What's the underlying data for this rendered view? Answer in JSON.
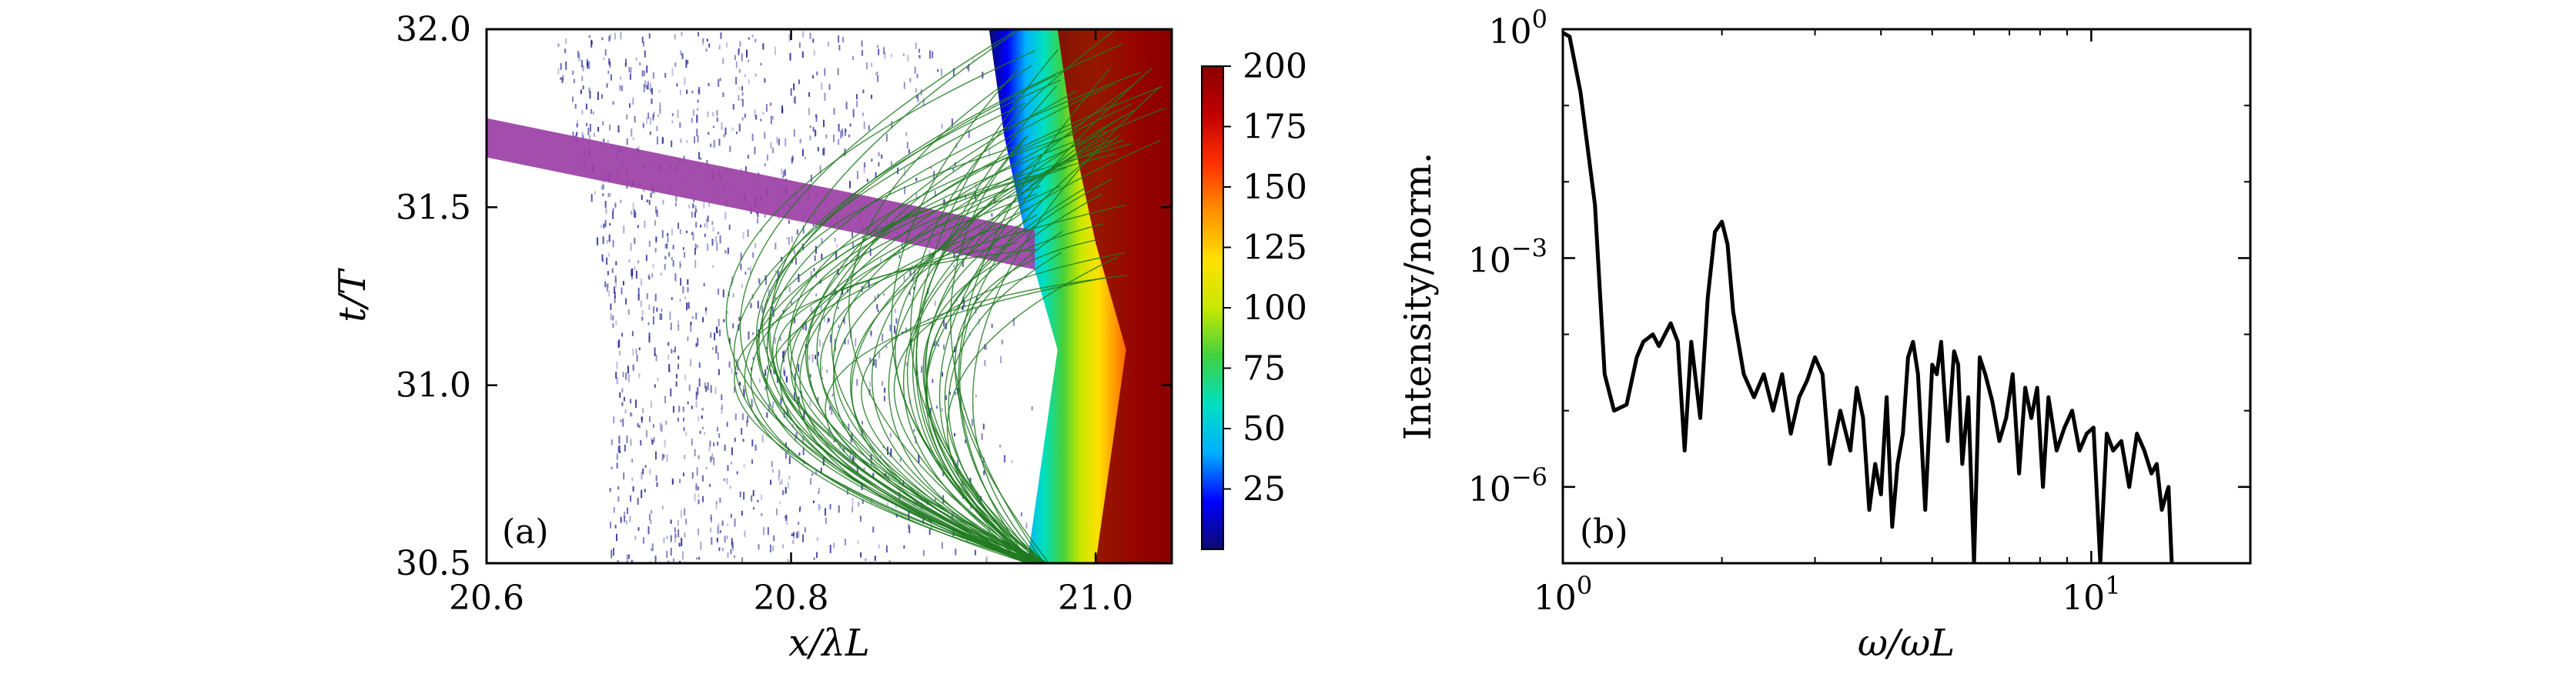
{
  "colors": {
    "background": "#ffffff",
    "axes": "#000000",
    "density_scatter": "#1a1a8c",
    "trajectories": "#1f7a1f",
    "emission_band": "#9b3fa6",
    "spectrum_line": "#000000",
    "colormap": [
      "#0b0b6e",
      "#0000ff",
      "#00b0ff",
      "#00e0c0",
      "#40d040",
      "#c8e800",
      "#ffe000",
      "#ff9000",
      "#ff3000",
      "#c00000",
      "#8b0000"
    ]
  },
  "chart_data": [
    {
      "type": "heatmap",
      "panel_label": "(a)",
      "title": "",
      "xlabel": "x/λL",
      "ylabel": "t/T",
      "xlim": [
        20.6,
        21.05
      ],
      "ylim": [
        30.5,
        32.0
      ],
      "xticks": [
        20.6,
        20.8,
        21.0
      ],
      "xtick_labels": [
        "20.6",
        "20.8",
        "21.0"
      ],
      "yticks": [
        30.5,
        31.0,
        31.5,
        32.0
      ],
      "ytick_labels": [
        "30.5",
        "31.0",
        "31.5",
        "32.0"
      ],
      "grid": false,
      "density_front": {
        "description_points_x_at_t": [
          {
            "t": 30.5,
            "x_start": 20.955
          },
          {
            "t": 30.8,
            "x_start": 20.965
          },
          {
            "t": 31.1,
            "x_start": 20.975
          },
          {
            "t": 31.4,
            "x_start": 20.955
          },
          {
            "t": 31.7,
            "x_start": 20.94
          },
          {
            "t": 32.0,
            "x_start": 20.93
          }
        ],
        "max_value_region_x": 21.0
      },
      "emission_band": {
        "x": [
          20.6,
          20.96
        ],
        "t_center": [
          31.695,
          31.38
        ],
        "t_halfwidth": 0.055
      },
      "colorbar": {
        "range": [
          0,
          200
        ],
        "ticks": [
          25,
          50,
          75,
          100,
          125,
          150,
          175,
          200
        ],
        "tick_labels": [
          "25",
          "50",
          "75",
          "100",
          "125",
          "150",
          "175",
          "200"
        ]
      }
    },
    {
      "type": "line",
      "panel_label": "(b)",
      "title": "",
      "xlabel": "ω/ωL",
      "ylabel": "Intensity/norm.",
      "xscale": "log",
      "yscale": "log",
      "xlim": [
        1,
        20
      ],
      "ylim": [
        1e-07,
        1
      ],
      "xticks": [
        1,
        10
      ],
      "xtick_labels_base": [
        "10",
        "10"
      ],
      "xtick_labels_exp": [
        "0",
        "1"
      ],
      "yticks": [
        1e-06,
        0.001,
        1
      ],
      "ytick_labels_base": [
        "10",
        "10",
        "10"
      ],
      "ytick_labels_exp": [
        "−6",
        "−3",
        "0"
      ],
      "grid": false,
      "series": [
        {
          "x": [
            1.0,
            1.03,
            1.08,
            1.15,
            1.2,
            1.25,
            1.32,
            1.38,
            1.42,
            1.48,
            1.52,
            1.56,
            1.6,
            1.65,
            1.7,
            1.75,
            1.82,
            1.88,
            1.94,
            2.0,
            2.05,
            2.1,
            2.2,
            2.3,
            2.4,
            2.5,
            2.6,
            2.7,
            2.8,
            2.9,
            3.0,
            3.1,
            3.2,
            3.35,
            3.5,
            3.6,
            3.7,
            3.8,
            3.9,
            4.0,
            4.1,
            4.2,
            4.3,
            4.4,
            4.5,
            4.6,
            4.7,
            4.85,
            5.0,
            5.1,
            5.2,
            5.35,
            5.5,
            5.6,
            5.7,
            5.85,
            6.0,
            6.15,
            6.3,
            6.5,
            6.7,
            6.9,
            7.1,
            7.3,
            7.5,
            7.7,
            7.9,
            8.1,
            8.3,
            8.6,
            8.9,
            9.2,
            9.5,
            9.8,
            10.1,
            10.4,
            10.7,
            11.0,
            11.4,
            11.8,
            12.2,
            12.6,
            13.0,
            13.3,
            13.6,
            14.0,
            14.2
          ],
          "y": [
            0.9,
            0.8,
            0.15,
            0.005,
            3e-05,
            1e-05,
            1.2e-05,
            5e-05,
            8e-05,
            0.0001,
            7e-05,
            0.0001,
            0.00014,
            8e-05,
            3e-06,
            8e-05,
            8e-06,
            0.0003,
            0.0022,
            0.003,
            0.0015,
            0.0002,
            3e-05,
            1.5e-05,
            3e-05,
            1e-05,
            3e-05,
            5e-06,
            1.5e-05,
            2.5e-05,
            5e-05,
            3e-05,
            2e-06,
            1e-05,
            3e-06,
            2e-05,
            8e-06,
            5e-07,
            2e-06,
            8e-07,
            1.5e-05,
            3e-07,
            2e-06,
            5e-06,
            5e-05,
            8e-05,
            3e-05,
            5e-07,
            4e-05,
            3e-05,
            8e-05,
            4e-06,
            6e-05,
            4e-05,
            2e-06,
            1.5e-05,
            1e-07,
            5e-05,
            3e-05,
            1.3e-05,
            4e-06,
            8e-06,
            3e-05,
            1.5e-06,
            2e-05,
            8e-06,
            2e-05,
            1e-06,
            1.5e-05,
            3e-06,
            6e-06,
            1e-05,
            3e-06,
            5e-06,
            6e-06,
            1e-07,
            5e-06,
            3e-06,
            4e-06,
            1e-06,
            5e-06,
            3e-06,
            1.5e-06,
            2e-06,
            5e-07,
            1e-06,
            1e-07
          ]
        }
      ]
    }
  ]
}
